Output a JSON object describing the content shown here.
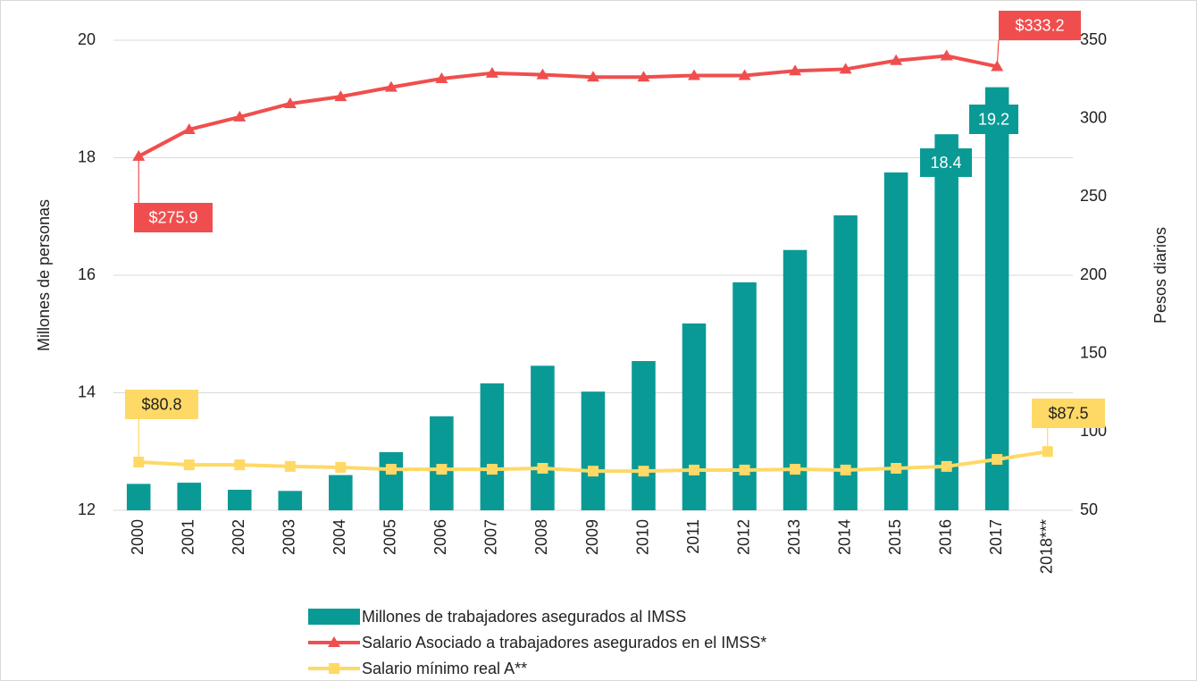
{
  "chart_data": {
    "type": "bar_line",
    "y_label": "Millones de personas",
    "y2_label": "Pesos diarios",
    "categories": [
      "2000",
      "2001",
      "2002",
      "2003",
      "2004",
      "2005",
      "2006",
      "2007",
      "2008",
      "2009",
      "2010",
      "2011",
      "2012",
      "2013",
      "2014",
      "2015",
      "2016",
      "2017",
      "2018***"
    ],
    "ylim": [
      12,
      20
    ],
    "yticks": [
      12,
      14,
      16,
      18,
      20
    ],
    "y2lim": [
      50,
      350
    ],
    "y2ticks": [
      50,
      100,
      150,
      200,
      250,
      300,
      350
    ],
    "series": [
      {
        "name": "Millones de trabajadores asegurados al IMSS",
        "type": "bar",
        "color": "#0a9a96",
        "values": [
          12.45,
          12.47,
          12.35,
          12.33,
          12.6,
          12.99,
          13.6,
          14.16,
          14.46,
          14.02,
          14.54,
          15.18,
          15.88,
          16.43,
          17.02,
          17.75,
          18.4,
          19.2,
          null
        ]
      },
      {
        "name": "Salario Asociado a trabajadores asegurados en el IMSS*",
        "type": "line",
        "axis": "y2",
        "color": "#f04e4e",
        "marker": "triangle",
        "values": [
          275.9,
          293,
          301,
          309.5,
          314,
          320,
          325.5,
          329,
          328,
          326.5,
          326.5,
          327.5,
          327.5,
          330.5,
          331.5,
          337,
          340,
          333.2,
          null
        ],
        "value_labels": [
          "$275.9",
          null,
          null,
          null,
          null,
          null,
          null,
          null,
          null,
          null,
          null,
          null,
          null,
          null,
          null,
          null,
          null,
          "$333.2",
          null
        ]
      },
      {
        "name": "Salario mínimo real A**",
        "type": "line",
        "axis": "y2",
        "color": "#ffd966",
        "marker": "square",
        "values": [
          80.8,
          79,
          79,
          78,
          77.4,
          76.2,
          76.2,
          76.2,
          76.8,
          75,
          75,
          75.7,
          75.7,
          76.2,
          75.7,
          76.8,
          78,
          82.5,
          87.5
        ],
        "value_labels": [
          "$80.8",
          null,
          null,
          null,
          null,
          null,
          null,
          null,
          null,
          null,
          null,
          null,
          null,
          null,
          null,
          null,
          null,
          null,
          "$87.5"
        ]
      }
    ]
  }
}
